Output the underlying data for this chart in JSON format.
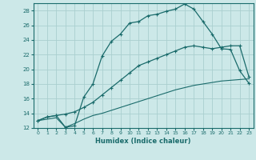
{
  "xlabel": "Humidex (Indice chaleur)",
  "bg_color": "#cce8e8",
  "grid_color": "#aacfcf",
  "line_color": "#1a6b6b",
  "xlim": [
    -0.5,
    23.5
  ],
  "ylim": [
    12,
    29
  ],
  "xticks": [
    0,
    1,
    2,
    3,
    4,
    5,
    6,
    7,
    8,
    9,
    10,
    11,
    12,
    13,
    14,
    15,
    16,
    17,
    18,
    19,
    20,
    21,
    22,
    23
  ],
  "yticks": [
    12,
    14,
    16,
    18,
    20,
    22,
    24,
    26,
    28
  ],
  "line1_x": [
    0,
    1,
    2,
    3,
    4,
    5,
    6,
    7,
    8,
    9,
    10,
    11,
    12,
    13,
    14,
    15,
    16,
    17,
    18,
    19,
    20,
    21,
    22,
    23
  ],
  "line1_y": [
    13.0,
    13.5,
    13.7,
    12.1,
    12.3,
    16.2,
    18.0,
    21.8,
    23.8,
    24.8,
    26.3,
    26.5,
    27.3,
    27.5,
    27.9,
    28.2,
    28.9,
    28.2,
    26.5,
    24.8,
    22.8,
    22.7,
    19.8,
    18.1
  ],
  "line2_x": [
    0,
    1,
    2,
    3,
    4,
    5,
    6,
    7,
    8,
    9,
    10,
    11,
    12,
    13,
    14,
    15,
    16,
    17,
    18,
    19,
    20,
    21,
    22,
    23
  ],
  "line2_y": [
    13.0,
    13.5,
    13.7,
    13.9,
    14.2,
    14.8,
    15.5,
    16.5,
    17.5,
    18.5,
    19.5,
    20.5,
    21.0,
    21.5,
    22.0,
    22.5,
    23.0,
    23.2,
    23.0,
    22.8,
    23.0,
    23.2,
    23.2,
    19.0
  ],
  "line3_x": [
    0,
    1,
    2,
    3,
    4,
    5,
    6,
    7,
    8,
    9,
    10,
    11,
    12,
    13,
    14,
    15,
    16,
    17,
    18,
    19,
    20,
    21,
    22,
    23
  ],
  "line3_y": [
    13.0,
    13.2,
    13.4,
    12.1,
    12.6,
    13.2,
    13.7,
    14.0,
    14.4,
    14.8,
    15.2,
    15.6,
    16.0,
    16.4,
    16.8,
    17.2,
    17.5,
    17.8,
    18.0,
    18.2,
    18.4,
    18.5,
    18.6,
    18.7
  ]
}
